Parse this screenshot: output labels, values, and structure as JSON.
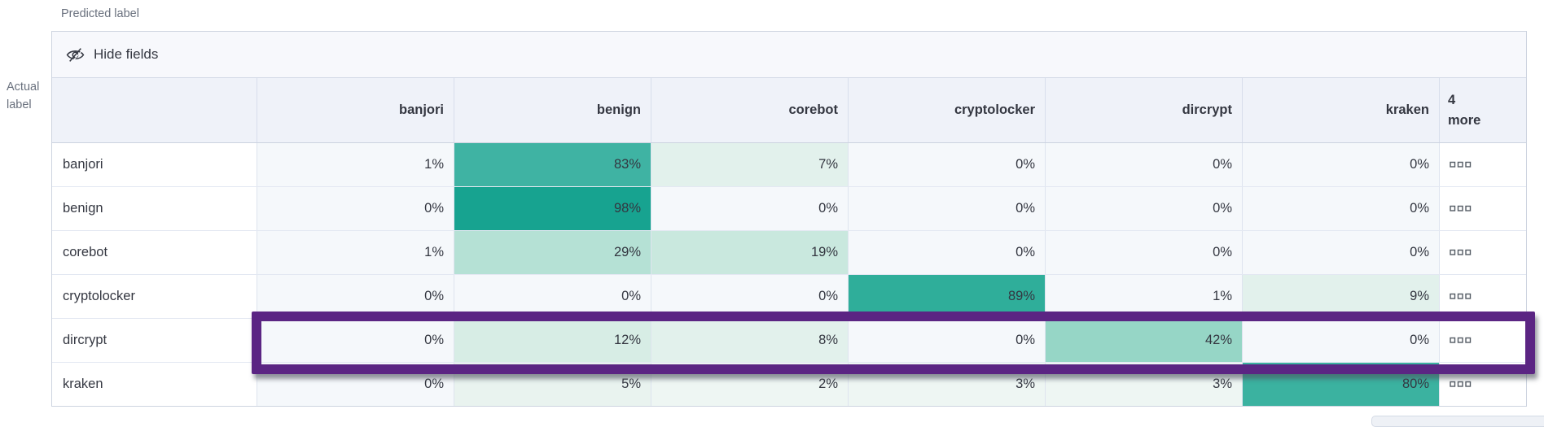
{
  "axis": {
    "predicted": "Predicted label",
    "actual_line1": "Actual",
    "actual_line2": "label"
  },
  "toolbar": {
    "hide_fields_label": "Hide fields"
  },
  "columns": [
    "banjori",
    "benign",
    "corebot",
    "cryptolocker",
    "dircrypt",
    "kraken"
  ],
  "more_header": {
    "line1": "4",
    "line2": "more"
  },
  "matrix": {
    "rows": [
      {
        "label": "banjori",
        "values": [
          "1%",
          "83%",
          "7%",
          "0%",
          "0%",
          "0%"
        ],
        "colors": [
          "#f5f8fb",
          "#3fb3a3",
          "#e2f1ec",
          "#f5f8fb",
          "#f5f8fb",
          "#f5f8fb"
        ]
      },
      {
        "label": "benign",
        "values": [
          "0%",
          "98%",
          "0%",
          "0%",
          "0%",
          "0%"
        ],
        "colors": [
          "#f5f8fb",
          "#17a390",
          "#f5f8fb",
          "#f5f8fb",
          "#f5f8fb",
          "#f5f8fb"
        ]
      },
      {
        "label": "corebot",
        "values": [
          "1%",
          "29%",
          "19%",
          "0%",
          "0%",
          "0%"
        ],
        "colors": [
          "#f5f8fb",
          "#b5e1d5",
          "#c9e8de",
          "#f5f8fb",
          "#f5f8fb",
          "#f5f8fb"
        ]
      },
      {
        "label": "cryptolocker",
        "values": [
          "0%",
          "0%",
          "0%",
          "89%",
          "1%",
          "9%"
        ],
        "colors": [
          "#f5f8fb",
          "#f5f8fb",
          "#f5f8fb",
          "#2fae9a",
          "#f5f8fb",
          "#e2f1ec"
        ]
      },
      {
        "label": "dircrypt",
        "values": [
          "0%",
          "12%",
          "8%",
          "0%",
          "42%",
          "0%"
        ],
        "colors": [
          "#f5f8fb",
          "#d7ede5",
          "#e2f1ec",
          "#f5f8fb",
          "#96d6c6",
          "#f5f8fb"
        ]
      },
      {
        "label": "kraken",
        "values": [
          "0%",
          "5%",
          "2%",
          "3%",
          "3%",
          "80%"
        ],
        "colors": [
          "#f5f8fb",
          "#e9f3ef",
          "#eef6f3",
          "#eef6f3",
          "#eef6f3",
          "#3bb2a0"
        ]
      }
    ],
    "highlighted_row": "dircrypt"
  },
  "chart_data": {
    "type": "heatmap",
    "title": "Confusion matrix (normalized %), actual vs predicted label",
    "x_categories": [
      "banjori",
      "benign",
      "corebot",
      "cryptolocker",
      "dircrypt",
      "kraken"
    ],
    "y_categories": [
      "banjori",
      "benign",
      "corebot",
      "cryptolocker",
      "dircrypt",
      "kraken"
    ],
    "values_percent": [
      [
        1,
        83,
        7,
        0,
        0,
        0
      ],
      [
        0,
        98,
        0,
        0,
        0,
        0
      ],
      [
        1,
        29,
        19,
        0,
        0,
        0
      ],
      [
        0,
        0,
        0,
        89,
        1,
        9
      ],
      [
        0,
        12,
        8,
        0,
        42,
        0
      ],
      [
        0,
        5,
        2,
        3,
        3,
        80
      ]
    ],
    "xlabel": "Predicted label",
    "ylabel": "Actual label",
    "hidden_columns_note": "4 more"
  },
  "colors": {
    "accent_teal_max": "#17a390",
    "cell_min_tint": "#f5f8fb",
    "highlight_purple": "#5b2583",
    "header_bg": "#eff2f9",
    "toolbar_bg": "#f7f8fc",
    "text": "#343741",
    "muted_text": "#69707d"
  }
}
